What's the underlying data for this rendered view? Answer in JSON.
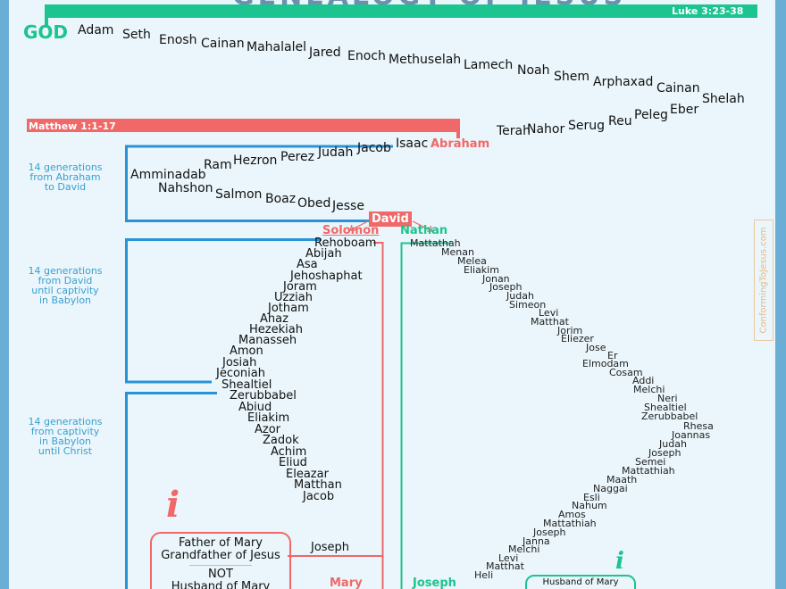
{
  "title": "GENEALOGY OF JESUS",
  "god_label": "GOD",
  "luke_label": "Luke 3:23-38",
  "matthew_label": "Matthew 1:1-17",
  "colors": {
    "luke": "#1cc48f",
    "matthew": "#f06868",
    "bracket": "#2a93d5",
    "frame": "#6aaed6",
    "background": "#eaf6fb"
  },
  "luke_top_row": [
    "Adam",
    "Seth",
    "Enosh",
    "Cainan",
    "Mahalalel",
    "Jared",
    "Enoch",
    "Methuselah",
    "Lamech",
    "Noah",
    "Shem",
    "Arphaxad",
    "Cainan",
    "Shelah"
  ],
  "shared_row": [
    "Eber",
    "Peleg",
    "Reu",
    "Serug",
    "Nahor",
    "Terah"
  ],
  "abraham": "Abraham",
  "abraham_to_jesse": [
    "Isaac",
    "Jacob",
    "Judah",
    "Perez",
    "Hezron",
    "Ram",
    "Amminadab",
    "Nahshon",
    "Salmon",
    "Boaz",
    "Obed",
    "Jesse"
  ],
  "david": "David",
  "solomon": "Solomon",
  "nathan": "Nathan",
  "solomon_line": [
    "Rehoboam",
    "Abijah",
    "Asa",
    "Jehoshaphat",
    "Joram",
    "Uzziah",
    "Jotham",
    "Ahaz",
    "Hezekiah",
    "Manasseh",
    "Amon",
    "Josiah",
    "Jeconiah",
    "Shealtiel",
    "Zerubbabel",
    "Abiud",
    "Eliakim",
    "Azor",
    "Zadok",
    "Achim",
    "Eliud",
    "Eleazar",
    "Matthan",
    "Jacob"
  ],
  "nathan_line": [
    "Mattathah",
    "Menan",
    "Melea",
    "Eliakim",
    "Jonan",
    "Joseph",
    "Judah",
    "Simeon",
    "Levi",
    "Matthat",
    "Jorim",
    "Eliezer",
    "Jose",
    "Er",
    "Elmodam",
    "Cosam",
    "Addi",
    "Melchi",
    "Neri",
    "Shealtiel",
    "Zerubbabel",
    "Rhesa",
    "Joannas",
    "Judah",
    "Joseph",
    "Semei",
    "Mattathiah",
    "Maath",
    "Naggai",
    "Esli",
    "Nahum",
    "Amos",
    "Mattathiah",
    "Joseph",
    "Janna",
    "Melchi",
    "Levi",
    "Matthat",
    "Heli"
  ],
  "matthew_joseph": "Joseph",
  "mary": "Mary",
  "luke_joseph": "Joseph",
  "generations": [
    "14 generations from Abraham to David",
    "14 generations from David until captivity in Babylon",
    "14 generations from captivity in Babylon until Christ"
  ],
  "generations_lines": [
    [
      "14 generations",
      "from Abraham",
      "to David"
    ],
    [
      "14 generations",
      "from David",
      "until captivity",
      "in Babylon"
    ],
    [
      "14 generations",
      "from captivity",
      "in Babylon",
      "until Christ"
    ]
  ],
  "red_note": {
    "line1": "Father of Mary",
    "line2": "Grandfather of Jesus",
    "line3": "NOT",
    "line4": "Husband of Mary"
  },
  "green_note": "Husband of Mary",
  "info_icon": "i",
  "watermark": "ConformingToJesus.com"
}
